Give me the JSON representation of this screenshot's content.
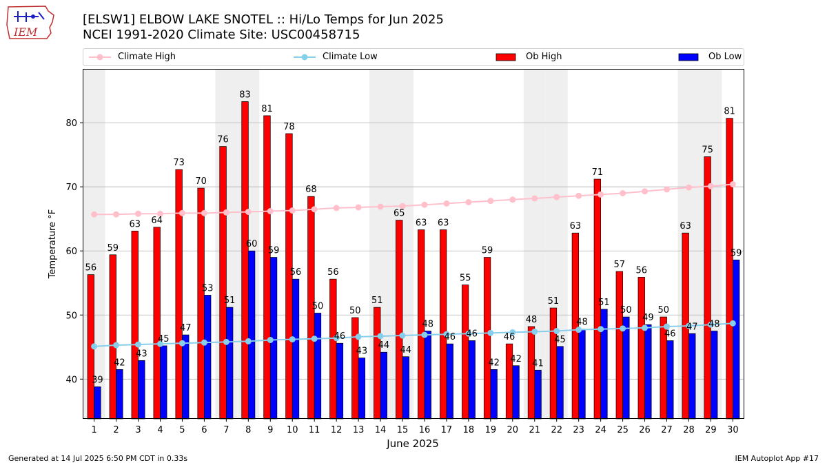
{
  "header": {
    "logo_text": "IEM",
    "title_line1": "[ELSW1] ELBOW LAKE SNOTEL :: Hi/Lo Temps for Jun 2025",
    "title_line2": "NCEI 1991-2020 Climate Site: USC00458715"
  },
  "legend": {
    "climate_high": "Climate High",
    "climate_low": "Climate Low",
    "ob_high": "Ob High",
    "ob_low": "Ob Low"
  },
  "colors": {
    "ob_high": "#ff0000",
    "ob_low": "#0000ff",
    "climate_high": "#ffc0cb",
    "climate_low": "#87ceeb",
    "weekend_shade": "#efefef",
    "grid": "#b0b0b0"
  },
  "footer": {
    "left": "Generated at 14 Jul 2025 6:50 PM CDT in 0.33s",
    "right": "IEM Autoplot App #17"
  },
  "chart_data": {
    "type": "bar",
    "xlabel": "June 2025",
    "ylabel": "Temperature °F",
    "ylim": [
      33.8,
      88.4
    ],
    "yticks": [
      40,
      50,
      60,
      70,
      80
    ],
    "grid": "y",
    "legend_position": "top",
    "weekend_shaded_days": [
      1,
      7,
      8,
      14,
      15,
      21,
      22,
      28,
      29
    ],
    "categories": [
      "1",
      "2",
      "3",
      "4",
      "5",
      "6",
      "7",
      "8",
      "9",
      "10",
      "11",
      "12",
      "13",
      "14",
      "15",
      "16",
      "17",
      "18",
      "19",
      "20",
      "21",
      "22",
      "23",
      "24",
      "25",
      "26",
      "27",
      "28",
      "29",
      "30"
    ],
    "series": [
      {
        "name": "Ob High",
        "kind": "bar",
        "values": [
          56.3,
          59.4,
          63.1,
          63.7,
          72.7,
          69.8,
          76.3,
          83.3,
          81.1,
          78.3,
          68.5,
          55.6,
          49.6,
          51.2,
          64.8,
          63.3,
          63.3,
          54.7,
          59.0,
          45.5,
          48.2,
          51.1,
          62.8,
          71.2,
          56.8,
          55.9,
          49.7,
          62.8,
          74.7,
          80.7
        ],
        "labels": [
          "56",
          "59",
          "63",
          "64",
          "73",
          "70",
          "76",
          "83",
          "81",
          "78",
          "68",
          "56",
          "50",
          "51",
          "65",
          "63",
          "63",
          "55",
          "59",
          "46",
          "48",
          "51",
          "63",
          "71",
          "57",
          "56",
          "50",
          "63",
          "75",
          "81"
        ]
      },
      {
        "name": "Ob Low",
        "kind": "bar",
        "values": [
          38.8,
          41.5,
          42.9,
          45.2,
          46.9,
          53.1,
          51.2,
          60.0,
          59.0,
          55.6,
          50.3,
          45.6,
          43.3,
          44.2,
          43.5,
          47.5,
          45.5,
          46.0,
          41.5,
          42.1,
          41.4,
          45.1,
          47.8,
          50.9,
          49.7,
          48.5,
          46.0,
          47.1,
          47.5,
          58.6
        ],
        "labels": [
          "39",
          "42",
          "43",
          "45",
          "47",
          "53",
          "51",
          "60",
          "59",
          "56",
          "50",
          "46",
          "43",
          "44",
          "44",
          "48",
          "46",
          "46",
          "42",
          "42",
          "41",
          "45",
          "48",
          "51",
          "50",
          "49",
          "46",
          "47",
          "48",
          "59"
        ]
      },
      {
        "name": "Climate High",
        "kind": "line",
        "values": [
          65.7,
          65.7,
          65.8,
          65.8,
          65.9,
          65.9,
          66.0,
          66.1,
          66.2,
          66.3,
          66.5,
          66.7,
          66.8,
          66.9,
          67.0,
          67.2,
          67.4,
          67.6,
          67.8,
          68.0,
          68.2,
          68.4,
          68.6,
          68.8,
          69.0,
          69.3,
          69.6,
          69.9,
          70.1,
          70.4
        ]
      },
      {
        "name": "Climate Low",
        "kind": "line",
        "values": [
          45.1,
          45.3,
          45.4,
          45.5,
          45.6,
          45.7,
          45.8,
          45.9,
          46.1,
          46.2,
          46.3,
          46.4,
          46.6,
          46.7,
          46.8,
          46.9,
          47.0,
          47.1,
          47.2,
          47.3,
          47.4,
          47.5,
          47.7,
          47.8,
          47.9,
          48.0,
          48.2,
          48.3,
          48.5,
          48.7
        ]
      }
    ]
  }
}
